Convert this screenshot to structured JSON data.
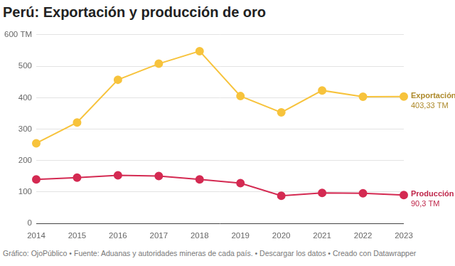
{
  "chart_data": {
    "type": "line",
    "title": "Perú: Exportación y producción de oro",
    "source": "Gráfico: OjoPúblico • Fuente: Aduanas y autoridades mineras de cada país. • Descargar los datos • Creado con Datawrapper",
    "categories": [
      "2014",
      "2015",
      "2016",
      "2017",
      "2018",
      "2019",
      "2020",
      "2021",
      "2022",
      "2023"
    ],
    "series": [
      {
        "name": "Exportación",
        "color": "#f7c33c",
        "values": [
          255,
          321,
          457,
          508,
          548,
          405,
          353,
          423,
          403,
          403.33
        ],
        "value_labels": [
          null,
          null,
          null,
          null,
          null,
          null,
          null,
          null,
          null,
          "403,33 TM"
        ]
      },
      {
        "name": "Producción",
        "color": "#d42a52",
        "values": [
          140,
          146,
          153,
          151,
          140,
          128,
          88,
          97,
          96,
          90.3
        ],
        "value_labels": [
          null,
          null,
          null,
          null,
          null,
          null,
          null,
          null,
          null,
          "90,3 TM"
        ]
      }
    ],
    "ylim": [
      0,
      600
    ],
    "yticks": [
      0,
      100,
      200,
      300,
      400,
      500,
      {
        "value": 600,
        "label": "600 TM"
      }
    ],
    "grid": true,
    "marker": "circle",
    "legend": "none"
  }
}
